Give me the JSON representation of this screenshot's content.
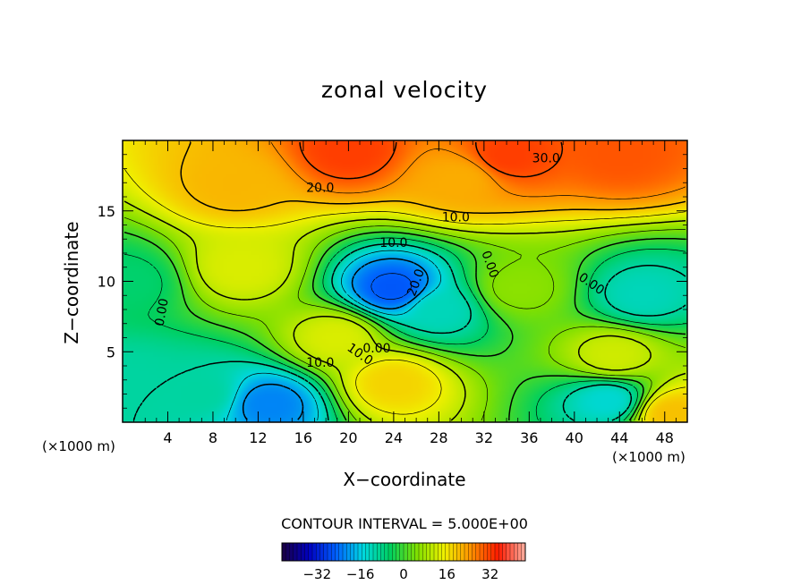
{
  "chart_data": {
    "type": "heatmap",
    "title": "zonal velocity",
    "xlabel": "X−coordinate",
    "ylabel": "Z−coordinate",
    "x_units": "(×1000 m)",
    "xlim": [
      0,
      50
    ],
    "ylim": [
      0,
      20
    ],
    "x_ticks": [
      4,
      8,
      12,
      16,
      20,
      24,
      28,
      32,
      36,
      40,
      44,
      48
    ],
    "x_tick_labels": [
      "4",
      "8",
      "12",
      "16",
      "20",
      "24",
      "28",
      "32",
      "36",
      "40",
      "44",
      "48"
    ],
    "y_ticks": [
      5,
      10,
      15
    ],
    "y_tick_labels": [
      "5",
      "10",
      "15"
    ],
    "contour_interval_text": "CONTOUR INTERVAL = 5.000E+00",
    "contour_labels": [
      {
        "text": "30.0",
        "x": 37.5,
        "y": 18.7
      },
      {
        "text": "20.0",
        "x": 17.5,
        "y": 16.6
      },
      {
        "text": "10.0",
        "x": 29.5,
        "y": 14.5
      },
      {
        "text": "10.0",
        "x": 24.0,
        "y": 12.7
      },
      {
        "text": "20.0",
        "x": 26.0,
        "y": 9.9,
        "angle": -70
      },
      {
        "text": "0.00",
        "x": 32.5,
        "y": 11.2,
        "angle": 70
      },
      {
        "text": "0.00",
        "x": 41.5,
        "y": 9.8,
        "angle": 35
      },
      {
        "text": "0.00",
        "x": 3.5,
        "y": 7.8,
        "angle": -80
      },
      {
        "text": "10.0",
        "x": 21.0,
        "y": 4.8,
        "angle": 35
      },
      {
        "text": "0.00",
        "x": 22.5,
        "y": 5.2
      },
      {
        "text": "10.0",
        "x": 17.5,
        "y": 4.2
      }
    ],
    "field_features": [
      {
        "x": 20,
        "y": 19.3,
        "value": 32
      },
      {
        "x": 34,
        "y": 18.9,
        "value": 32
      },
      {
        "x": 44,
        "y": 19.1,
        "value": 30
      },
      {
        "x": 30,
        "y": 17.3,
        "value": 22
      },
      {
        "x": 10,
        "y": 16.8,
        "value": 21
      },
      {
        "x": 10.5,
        "y": 11.0,
        "value": 13
      },
      {
        "x": 19,
        "y": 6.0,
        "value": 13
      },
      {
        "x": 24,
        "y": 2.8,
        "value": 18
      },
      {
        "x": 24,
        "y": 9.5,
        "value": -26
      },
      {
        "x": 28,
        "y": 8.0,
        "value": -12
      },
      {
        "x": 13,
        "y": 1.3,
        "value": -22
      },
      {
        "x": 7,
        "y": 2.0,
        "value": -10
      },
      {
        "x": 43.5,
        "y": 4.7,
        "value": 12
      },
      {
        "x": 48.5,
        "y": 0.6,
        "value": 20
      },
      {
        "x": 43,
        "y": 1.5,
        "value": -14
      },
      {
        "x": 46,
        "y": 9.0,
        "value": -12
      },
      {
        "x": 35,
        "y": 9.5,
        "value": 6
      },
      {
        "x": 0.5,
        "y": 10.0,
        "value": -6
      },
      {
        "x": 0.5,
        "y": 3.0,
        "value": -10
      }
    ],
    "colorbar": {
      "range": [
        -45,
        45
      ],
      "ticks": [
        -32,
        -16,
        0,
        16,
        32
      ],
      "tick_labels": [
        "−32",
        "−16",
        "0",
        "16",
        "32"
      ],
      "colors": [
        "#1a0040",
        "#0000c0",
        "#0060ff",
        "#00d8e0",
        "#00d060",
        "#80e000",
        "#f0f000",
        "#ff9000",
        "#ff1a00",
        "#ffb0a0"
      ]
    }
  }
}
